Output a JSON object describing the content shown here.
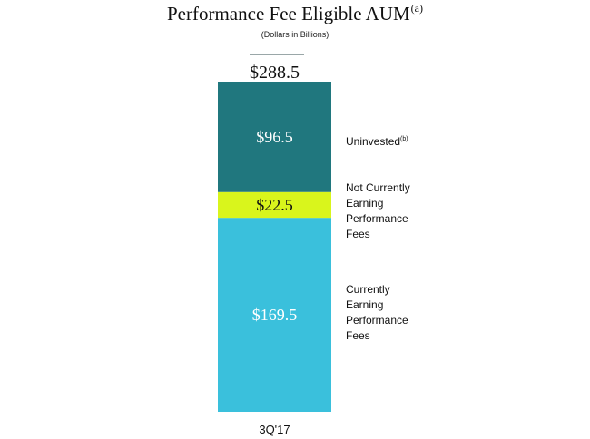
{
  "chart_data": {
    "type": "bar",
    "stacked": true,
    "title": "Performance Fee Eligible AUM",
    "title_superscript": "(a)",
    "subtitle": "(Dollars in Billions)",
    "categories": [
      "3Q'17"
    ],
    "total_label": "$288.5",
    "total": 288.5,
    "series": [
      {
        "name": "Currently Earning Performance Fees",
        "values": [
          169.5
        ],
        "label": "$169.5",
        "color": "#3ac0dc",
        "text_color": "#ffffff"
      },
      {
        "name": "Not Currently Earning Performance Fees",
        "values": [
          22.5
        ],
        "label": "$22.5",
        "color": "#d9f51c",
        "text_color": "#111111"
      },
      {
        "name": "Uninvested",
        "name_superscript": "(b)",
        "values": [
          96.5
        ],
        "label": "$96.5",
        "color": "#20777e",
        "text_color": "#ffffff"
      }
    ],
    "legend_placement": "right",
    "grid": false
  }
}
